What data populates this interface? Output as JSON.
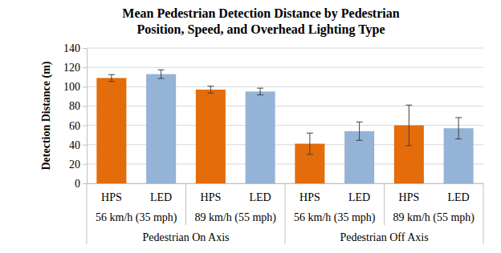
{
  "chart_data": {
    "type": "bar",
    "title": [
      "Mean Pedestrian Detection Distance by Pedestrian",
      "Position, Speed, and Overhead Lighting Type"
    ],
    "ylabel": "Detection Distance (m)",
    "categories": [
      "HPS",
      "LED",
      "HPS",
      "LED",
      "HPS",
      "LED",
      "HPS",
      "LED"
    ],
    "speed_groups": [
      "56 km/h (35 mph)",
      "89 km/h (55 mph)",
      "56 km/h (35 mph)",
      "89 km/h (55 mph)"
    ],
    "position_groups": [
      "Pedestrian On Axis",
      "Pedestrian Off Axis"
    ],
    "values": [
      109,
      113,
      97,
      95,
      41,
      54,
      60,
      57
    ],
    "errors": [
      3.5,
      4.5,
      3.5,
      3.5,
      11,
      9.5,
      21,
      11
    ],
    "colors": [
      "#e46c0a",
      "#95b3d7",
      "#e46c0a",
      "#95b3d7",
      "#e46c0a",
      "#95b3d7",
      "#e46c0a",
      "#95b3d7"
    ],
    "ylim": [
      0,
      140
    ],
    "yticks": [
      0,
      20,
      40,
      60,
      80,
      100,
      120,
      140
    ],
    "grid": true
  }
}
